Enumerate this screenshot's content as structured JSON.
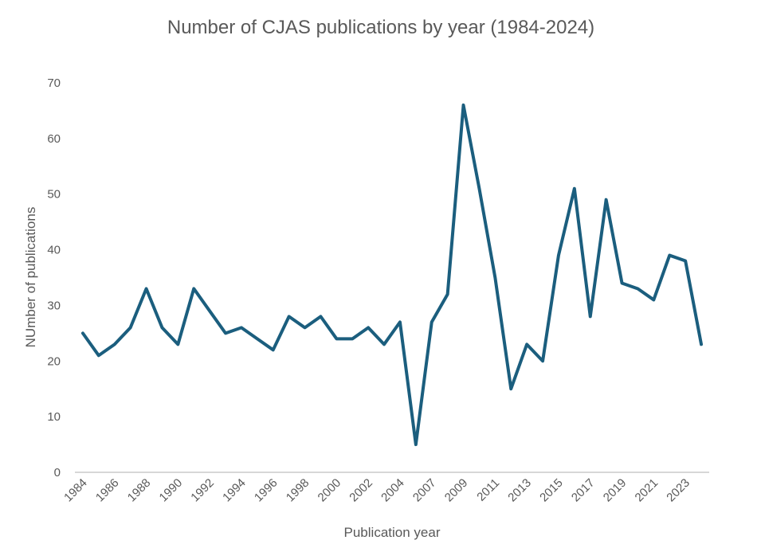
{
  "chart_data": {
    "type": "line",
    "title": "Number of CJAS publications by year (1984-2024)",
    "xlabel": "Publication year",
    "ylabel": "NUmber of publications",
    "ylim": [
      0,
      70
    ],
    "yticks": [
      0,
      10,
      20,
      30,
      40,
      50,
      60,
      70
    ],
    "grid": false,
    "x": [
      1984,
      1985,
      1986,
      1987,
      1988,
      1989,
      1990,
      1991,
      1992,
      1993,
      1994,
      1995,
      1996,
      1997,
      1998,
      1999,
      2000,
      2001,
      2002,
      2003,
      2004,
      2005,
      2007,
      2008,
      2009,
      2010,
      2011,
      2012,
      2013,
      2014,
      2015,
      2016,
      2017,
      2018,
      2019,
      2020,
      2021,
      2022,
      2023,
      2024
    ],
    "x_tick_labels": [
      "1984",
      "1986",
      "1988",
      "1990",
      "1992",
      "1994",
      "1996",
      "1998",
      "2000",
      "2002",
      "2004",
      "2007",
      "2009",
      "2011",
      "2013",
      "2015",
      "2017",
      "2019",
      "2021",
      "2023"
    ],
    "series": [
      {
        "color": "#1b5e7e",
        "values": [
          25,
          21,
          23,
          26,
          33,
          26,
          23,
          33,
          29,
          25,
          26,
          24,
          22,
          28,
          26,
          28,
          24,
          24,
          26,
          23,
          27,
          5,
          27,
          32,
          66,
          51,
          35,
          15,
          23,
          20,
          39,
          51,
          28,
          49,
          34,
          33,
          31,
          39,
          38,
          23
        ]
      }
    ]
  }
}
